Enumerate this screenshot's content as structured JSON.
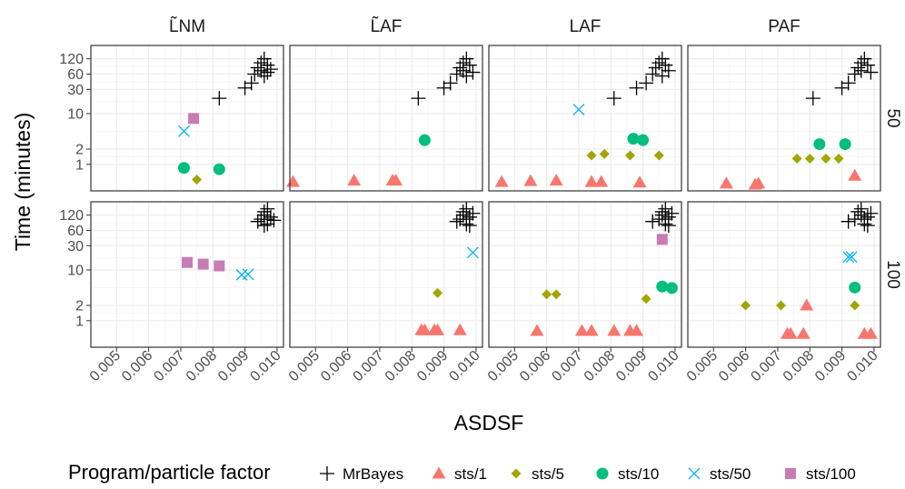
{
  "chart_data": {
    "type": "scatter",
    "xlabel": "ASDSF",
    "ylabel": "Time (minutes)",
    "log_y": true,
    "xlim": [
      0.0042,
      0.0102
    ],
    "ylim": [
      0.3,
      220
    ],
    "x_ticks": [
      0.005,
      0.006,
      0.007,
      0.008,
      0.009,
      0.01
    ],
    "x_tick_labels": [
      "0.005",
      "0.006",
      "0.007",
      "0.008",
      "0.009",
      "0.010"
    ],
    "y_ticks": [
      1,
      2,
      10,
      30,
      60,
      120
    ],
    "y_tick_labels": [
      "1",
      "2",
      "10",
      "30",
      "60",
      "120"
    ],
    "grid": true,
    "columns": [
      "L̃NM",
      "L̃AF",
      "LAF",
      "PAF"
    ],
    "rows": [
      "50",
      "100"
    ],
    "legend": {
      "title": "Program/particle factor",
      "position": "bottom",
      "entries": [
        {
          "label": "MrBayes",
          "shape": "plus",
          "color": "#000000"
        },
        {
          "label": "sts/1",
          "shape": "triangle",
          "color": "#F8766D"
        },
        {
          "label": "sts/5",
          "shape": "diamond",
          "color": "#A3A500"
        },
        {
          "label": "sts/10",
          "shape": "circle",
          "color": "#00BF7D"
        },
        {
          "label": "sts/50",
          "shape": "cross",
          "color": "#00B0F6"
        },
        {
          "label": "sts/100",
          "shape": "square",
          "color": "#C77CB3"
        }
      ]
    },
    "panels": [
      {
        "row": "50",
        "column": "L̃NM",
        "series": [
          {
            "name": "MrBayes",
            "points": [
              [
                0.0082,
                20
              ],
              [
                0.009,
                32
              ],
              [
                0.0092,
                40
              ],
              [
                0.0093,
                60
              ],
              [
                0.0094,
                80
              ],
              [
                0.0095,
                100
              ],
              [
                0.0096,
                120
              ],
              [
                0.0097,
                90
              ],
              [
                0.0095,
                70
              ],
              [
                0.0097,
                65
              ],
              [
                0.0098,
                75
              ],
              [
                0.0096,
                55
              ]
            ]
          },
          {
            "name": "sts/1",
            "points": []
          },
          {
            "name": "sts/5",
            "points": [
              [
                0.0075,
                0.5
              ]
            ]
          },
          {
            "name": "sts/10",
            "points": [
              [
                0.0071,
                0.85
              ],
              [
                0.0082,
                0.8
              ]
            ]
          },
          {
            "name": "sts/50",
            "points": [
              [
                0.0071,
                4.5
              ]
            ]
          },
          {
            "name": "sts/100",
            "points": [
              [
                0.0074,
                8
              ]
            ]
          }
        ]
      },
      {
        "row": "50",
        "column": "L̃AF",
        "series": [
          {
            "name": "MrBayes",
            "points": [
              [
                0.0082,
                20
              ],
              [
                0.009,
                32
              ],
              [
                0.0092,
                40
              ],
              [
                0.0094,
                60
              ],
              [
                0.0095,
                80
              ],
              [
                0.0096,
                100
              ],
              [
                0.0097,
                120
              ],
              [
                0.0096,
                70
              ],
              [
                0.0098,
                90
              ],
              [
                0.0099,
                65
              ],
              [
                0.0097,
                55
              ]
            ]
          },
          {
            "name": "sts/1",
            "points": [
              [
                0.0043,
                0.45
              ],
              [
                0.0062,
                0.48
              ],
              [
                0.0074,
                0.48
              ],
              [
                0.0075,
                0.48
              ]
            ]
          },
          {
            "name": "sts/5",
            "points": []
          },
          {
            "name": "sts/10",
            "points": [
              [
                0.0084,
                3
              ]
            ]
          },
          {
            "name": "sts/50",
            "points": []
          },
          {
            "name": "sts/100",
            "points": []
          }
        ]
      },
      {
        "row": "50",
        "column": "LAF",
        "series": [
          {
            "name": "MrBayes",
            "points": [
              [
                0.0081,
                20
              ],
              [
                0.0088,
                32
              ],
              [
                0.0091,
                40
              ],
              [
                0.0093,
                60
              ],
              [
                0.0094,
                80
              ],
              [
                0.0095,
                100
              ],
              [
                0.0096,
                120
              ],
              [
                0.0097,
                90
              ],
              [
                0.0098,
                70
              ],
              [
                0.0096,
                55
              ]
            ]
          },
          {
            "name": "sts/1",
            "points": [
              [
                0.0046,
                0.45
              ],
              [
                0.0055,
                0.47
              ],
              [
                0.0063,
                0.48
              ],
              [
                0.0074,
                0.45
              ],
              [
                0.0077,
                0.45
              ],
              [
                0.0089,
                0.44
              ]
            ]
          },
          {
            "name": "sts/5",
            "points": [
              [
                0.0074,
                1.5
              ],
              [
                0.0078,
                1.6
              ],
              [
                0.0086,
                1.5
              ],
              [
                0.0095,
                1.5
              ]
            ]
          },
          {
            "name": "sts/10",
            "points": [
              [
                0.0087,
                3.2
              ],
              [
                0.009,
                3
              ]
            ]
          },
          {
            "name": "sts/50",
            "points": [
              [
                0.007,
                12
              ]
            ]
          },
          {
            "name": "sts/100",
            "points": []
          }
        ]
      },
      {
        "row": "50",
        "column": "PAF",
        "series": [
          {
            "name": "MrBayes",
            "points": [
              [
                0.0081,
                20
              ],
              [
                0.009,
                32
              ],
              [
                0.0092,
                40
              ],
              [
                0.0094,
                60
              ],
              [
                0.0095,
                80
              ],
              [
                0.0096,
                100
              ],
              [
                0.0097,
                120
              ],
              [
                0.0098,
                90
              ],
              [
                0.0096,
                70
              ],
              [
                0.0099,
                65
              ]
            ]
          },
          {
            "name": "sts/1",
            "points": [
              [
                0.0054,
                0.42
              ],
              [
                0.0063,
                0.4
              ],
              [
                0.0064,
                0.42
              ],
              [
                0.0094,
                0.6
              ]
            ]
          },
          {
            "name": "sts/5",
            "points": [
              [
                0.0076,
                1.3
              ],
              [
                0.008,
                1.3
              ],
              [
                0.0085,
                1.3
              ],
              [
                0.0089,
                1.3
              ]
            ]
          },
          {
            "name": "sts/10",
            "points": [
              [
                0.0083,
                2.5
              ],
              [
                0.0091,
                2.5
              ]
            ]
          },
          {
            "name": "sts/50",
            "points": []
          },
          {
            "name": "sts/100",
            "points": []
          }
        ]
      },
      {
        "row": "100",
        "column": "L̃NM",
        "series": [
          {
            "name": "MrBayes",
            "points": [
              [
                0.0094,
                90
              ],
              [
                0.0095,
                100
              ],
              [
                0.0096,
                140
              ],
              [
                0.0097,
                160
              ],
              [
                0.0096,
                120
              ],
              [
                0.0097,
                100
              ],
              [
                0.0098,
                110
              ],
              [
                0.0097,
                80
              ],
              [
                0.0096,
                75
              ],
              [
                0.0099,
                95
              ]
            ]
          },
          {
            "name": "sts/1",
            "points": []
          },
          {
            "name": "sts/5",
            "points": []
          },
          {
            "name": "sts/10",
            "points": []
          },
          {
            "name": "sts/50",
            "points": [
              [
                0.0089,
                8
              ],
              [
                0.0091,
                8.2
              ]
            ]
          },
          {
            "name": "sts/100",
            "points": [
              [
                0.0072,
                14
              ],
              [
                0.0077,
                13
              ],
              [
                0.0082,
                12
              ]
            ]
          }
        ]
      },
      {
        "row": "100",
        "column": "L̃AF",
        "series": [
          {
            "name": "MrBayes",
            "points": [
              [
                0.0094,
                90
              ],
              [
                0.0095,
                100
              ],
              [
                0.0096,
                140
              ],
              [
                0.0097,
                160
              ],
              [
                0.0096,
                120
              ],
              [
                0.0097,
                100
              ],
              [
                0.0098,
                110
              ],
              [
                0.0097,
                80
              ],
              [
                0.0098,
                75
              ],
              [
                0.0099,
                130
              ]
            ]
          },
          {
            "name": "sts/1",
            "points": [
              [
                0.0083,
                0.65
              ],
              [
                0.0084,
                0.65
              ],
              [
                0.0087,
                0.65
              ],
              [
                0.0088,
                0.65
              ],
              [
                0.0095,
                0.65
              ]
            ]
          },
          {
            "name": "sts/5",
            "points": [
              [
                0.0088,
                3.5
              ]
            ]
          },
          {
            "name": "sts/10",
            "points": []
          },
          {
            "name": "sts/50",
            "points": [
              [
                0.0099,
                22
              ]
            ]
          },
          {
            "name": "sts/100",
            "points": []
          }
        ]
      },
      {
        "row": "100",
        "column": "LAF",
        "series": [
          {
            "name": "MrBayes",
            "points": [
              [
                0.0093,
                90
              ],
              [
                0.0095,
                100
              ],
              [
                0.0096,
                140
              ],
              [
                0.0097,
                160
              ],
              [
                0.0096,
                120
              ],
              [
                0.0097,
                100
              ],
              [
                0.0098,
                110
              ],
              [
                0.0097,
                80
              ],
              [
                0.0098,
                75
              ],
              [
                0.0099,
                130
              ]
            ]
          },
          {
            "name": "sts/1",
            "points": [
              [
                0.0057,
                0.63
              ],
              [
                0.0071,
                0.63
              ],
              [
                0.0074,
                0.63
              ],
              [
                0.0081,
                0.63
              ],
              [
                0.0086,
                0.63
              ],
              [
                0.0088,
                0.63
              ]
            ]
          },
          {
            "name": "sts/5",
            "points": [
              [
                0.006,
                3.3
              ],
              [
                0.0063,
                3.3
              ],
              [
                0.0091,
                2.7
              ]
            ]
          },
          {
            "name": "sts/10",
            "points": [
              [
                0.0096,
                4.7
              ],
              [
                0.0099,
                4.4
              ]
            ]
          },
          {
            "name": "sts/50",
            "points": []
          },
          {
            "name": "sts/100",
            "points": [
              [
                0.0096,
                40
              ]
            ]
          }
        ]
      },
      {
        "row": "100",
        "column": "PAF",
        "series": [
          {
            "name": "MrBayes",
            "points": [
              [
                0.0092,
                90
              ],
              [
                0.0094,
                100
              ],
              [
                0.0095,
                140
              ],
              [
                0.0096,
                160
              ],
              [
                0.0096,
                120
              ],
              [
                0.0097,
                100
              ],
              [
                0.0098,
                110
              ],
              [
                0.0097,
                80
              ],
              [
                0.0098,
                75
              ],
              [
                0.0099,
                130
              ]
            ]
          },
          {
            "name": "sts/1",
            "points": [
              [
                0.0073,
                0.55
              ],
              [
                0.0074,
                0.55
              ],
              [
                0.0078,
                0.55
              ],
              [
                0.0079,
                2.0
              ],
              [
                0.0097,
                0.55
              ],
              [
                0.0099,
                0.55
              ]
            ]
          },
          {
            "name": "sts/5",
            "points": [
              [
                0.006,
                2.0
              ],
              [
                0.0071,
                2.0
              ],
              [
                0.0094,
                2.0
              ]
            ]
          },
          {
            "name": "sts/10",
            "points": [
              [
                0.0094,
                4.5
              ]
            ]
          },
          {
            "name": "sts/50",
            "points": [
              [
                0.0092,
                18
              ],
              [
                0.0093,
                18
              ]
            ]
          },
          {
            "name": "sts/100",
            "points": []
          }
        ]
      }
    ]
  }
}
